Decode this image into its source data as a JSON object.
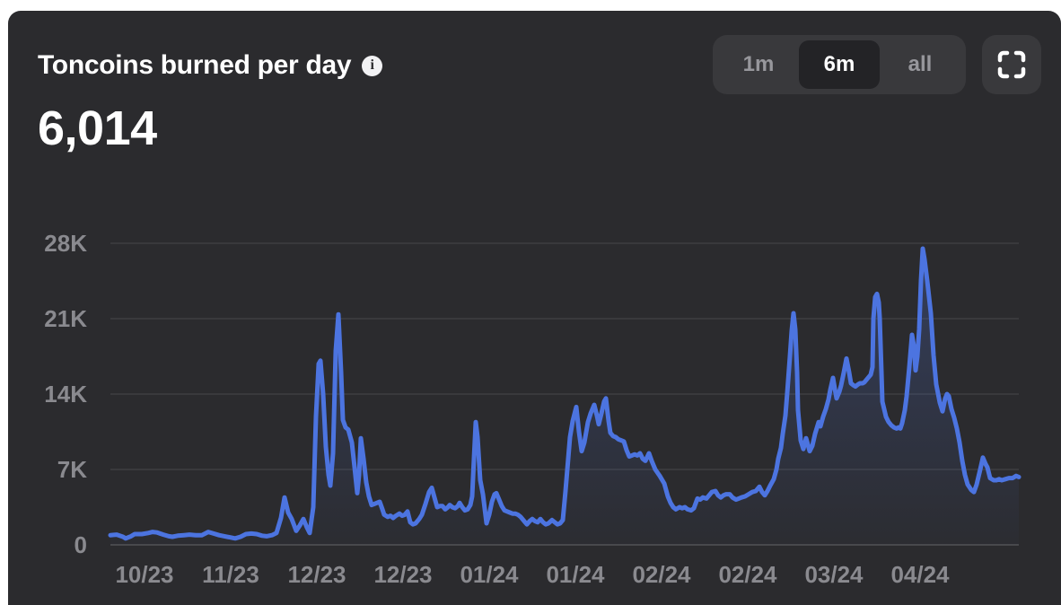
{
  "header": {
    "title": "Toncoins burned per day",
    "value": "6,014",
    "range_options": [
      {
        "label": "1m",
        "active": false
      },
      {
        "label": "6m",
        "active": true
      },
      {
        "label": "all",
        "active": false
      }
    ],
    "info_icon_glyph": "i"
  },
  "colors": {
    "panel_bg": "#2b2b2e",
    "page_bg": "#ffffff",
    "line": "#4c74e0",
    "area_top": "rgba(80,120,230,0.25)",
    "area_bottom": "rgba(80,120,230,0.02)",
    "gridline": "rgba(255,255,255,0.07)",
    "baseline": "rgba(255,255,255,0.14)",
    "axis_label": "#8a8a8f",
    "control_bg": "#39393c",
    "control_active_bg": "#232326"
  },
  "chart_data": {
    "type": "area",
    "title": "Toncoins burned per day",
    "unit": "toncoins burned per day",
    "current_value": 6014,
    "selected_range": "6m",
    "ylim": [
      0,
      28000
    ],
    "grid": "horizontal",
    "legend": "none",
    "yticks": [
      {
        "value": 0,
        "label": "0"
      },
      {
        "value": 7000,
        "label": "7K"
      },
      {
        "value": 14000,
        "label": "14K"
      },
      {
        "value": 21000,
        "label": "21K"
      },
      {
        "value": 28000,
        "label": "28K"
      }
    ],
    "xticks": [
      "10/23",
      "11/23",
      "12/23",
      "12/23",
      "01/24",
      "01/24",
      "02/24",
      "02/24",
      "03/24",
      "04/24"
    ],
    "points_format": "[x_position_px, toncoins_per_day]",
    "points": [
      [
        123,
        900
      ],
      [
        130,
        950
      ],
      [
        137,
        750
      ],
      [
        140,
        600
      ],
      [
        146,
        800
      ],
      [
        150,
        1000
      ],
      [
        158,
        1000
      ],
      [
        165,
        1100
      ],
      [
        170,
        1200
      ],
      [
        175,
        1150
      ],
      [
        182,
        950
      ],
      [
        188,
        800
      ],
      [
        192,
        750
      ],
      [
        198,
        850
      ],
      [
        205,
        900
      ],
      [
        211,
        950
      ],
      [
        218,
        900
      ],
      [
        225,
        900
      ],
      [
        232,
        1200
      ],
      [
        238,
        1050
      ],
      [
        244,
        900
      ],
      [
        250,
        800
      ],
      [
        256,
        700
      ],
      [
        262,
        600
      ],
      [
        268,
        750
      ],
      [
        274,
        1000
      ],
      [
        280,
        1050
      ],
      [
        286,
        1000
      ],
      [
        292,
        850
      ],
      [
        297,
        800
      ],
      [
        303,
        900
      ],
      [
        308,
        1100
      ],
      [
        313,
        2500
      ],
      [
        317,
        4400
      ],
      [
        321,
        3000
      ],
      [
        325,
        2400
      ],
      [
        330,
        1300
      ],
      [
        334,
        1800
      ],
      [
        338,
        2400
      ],
      [
        342,
        1600
      ],
      [
        345,
        1100
      ],
      [
        349,
        3500
      ],
      [
        352,
        11900
      ],
      [
        355,
        16800
      ],
      [
        357,
        17100
      ],
      [
        360,
        14000
      ],
      [
        363,
        9100
      ],
      [
        366,
        6500
      ],
      [
        368,
        5500
      ],
      [
        371,
        8500
      ],
      [
        374,
        18000
      ],
      [
        377,
        21400
      ],
      [
        380,
        16000
      ],
      [
        382,
        11600
      ],
      [
        385,
        10900
      ],
      [
        388,
        10700
      ],
      [
        392,
        9500
      ],
      [
        395,
        7200
      ],
      [
        398,
        4800
      ],
      [
        400,
        6500
      ],
      [
        402,
        9900
      ],
      [
        405,
        8000
      ],
      [
        408,
        5800
      ],
      [
        411,
        4500
      ],
      [
        414,
        3700
      ],
      [
        417,
        3800
      ],
      [
        420,
        3900
      ],
      [
        423,
        4000
      ],
      [
        426,
        3300
      ],
      [
        428,
        2800
      ],
      [
        432,
        2600
      ],
      [
        435,
        2700
      ],
      [
        438,
        2500
      ],
      [
        441,
        2700
      ],
      [
        445,
        2900
      ],
      [
        448,
        2700
      ],
      [
        451,
        2800
      ],
      [
        454,
        3100
      ],
      [
        457,
        2100
      ],
      [
        460,
        1900
      ],
      [
        463,
        2000
      ],
      [
        467,
        2400
      ],
      [
        470,
        2800
      ],
      [
        474,
        3800
      ],
      [
        478,
        4900
      ],
      [
        481,
        5300
      ],
      [
        484,
        4400
      ],
      [
        487,
        3500
      ],
      [
        490,
        3600
      ],
      [
        493,
        3600
      ],
      [
        496,
        3300
      ],
      [
        499,
        3500
      ],
      [
        501,
        3700
      ],
      [
        504,
        3500
      ],
      [
        507,
        3400
      ],
      [
        510,
        3600
      ],
      [
        512,
        3900
      ],
      [
        515,
        3500
      ],
      [
        518,
        3200
      ],
      [
        521,
        3300
      ],
      [
        524,
        3700
      ],
      [
        526,
        4500
      ],
      [
        528,
        8000
      ],
      [
        530,
        11400
      ],
      [
        532,
        10000
      ],
      [
        535,
        6000
      ],
      [
        538,
        4700
      ],
      [
        542,
        2000
      ],
      [
        545,
        2800
      ],
      [
        548,
        4000
      ],
      [
        551,
        4700
      ],
      [
        553,
        4800
      ],
      [
        556,
        4200
      ],
      [
        559,
        3600
      ],
      [
        562,
        3200
      ],
      [
        565,
        3100
      ],
      [
        568,
        3000
      ],
      [
        571,
        2900
      ],
      [
        574,
        2900
      ],
      [
        577,
        2800
      ],
      [
        580,
        2600
      ],
      [
        584,
        2200
      ],
      [
        587,
        1900
      ],
      [
        590,
        2200
      ],
      [
        593,
        2400
      ],
      [
        596,
        2200
      ],
      [
        599,
        2100
      ],
      [
        602,
        2400
      ],
      [
        605,
        2100
      ],
      [
        608,
        1900
      ],
      [
        611,
        2000
      ],
      [
        615,
        2300
      ],
      [
        618,
        2100
      ],
      [
        621,
        1900
      ],
      [
        624,
        2000
      ],
      [
        627,
        2300
      ],
      [
        630,
        5000
      ],
      [
        633,
        8000
      ],
      [
        635,
        10000
      ],
      [
        638,
        11500
      ],
      [
        642,
        12800
      ],
      [
        645,
        10500
      ],
      [
        648,
        8700
      ],
      [
        651,
        9500
      ],
      [
        655,
        11400
      ],
      [
        658,
        12200
      ],
      [
        662,
        13000
      ],
      [
        665,
        12000
      ],
      [
        667,
        11200
      ],
      [
        670,
        12200
      ],
      [
        673,
        13300
      ],
      [
        675,
        13600
      ],
      [
        678,
        11500
      ],
      [
        680,
        10400
      ],
      [
        683,
        10100
      ],
      [
        686,
        10000
      ],
      [
        689,
        9800
      ],
      [
        692,
        9700
      ],
      [
        695,
        9600
      ],
      [
        698,
        8800
      ],
      [
        701,
        8200
      ],
      [
        704,
        8300
      ],
      [
        707,
        8400
      ],
      [
        710,
        8300
      ],
      [
        713,
        8500
      ],
      [
        716,
        8000
      ],
      [
        719,
        7800
      ],
      [
        723,
        8500
      ],
      [
        726,
        7800
      ],
      [
        730,
        7000
      ],
      [
        735,
        6400
      ],
      [
        740,
        5700
      ],
      [
        744,
        4500
      ],
      [
        747,
        3900
      ],
      [
        750,
        3500
      ],
      [
        753,
        3300
      ],
      [
        757,
        3500
      ],
      [
        760,
        3400
      ],
      [
        763,
        3500
      ],
      [
        766,
        3300
      ],
      [
        770,
        3200
      ],
      [
        773,
        3400
      ],
      [
        777,
        4300
      ],
      [
        780,
        4200
      ],
      [
        783,
        4400
      ],
      [
        787,
        4300
      ],
      [
        790,
        4600
      ],
      [
        793,
        4900
      ],
      [
        797,
        5000
      ],
      [
        800,
        4600
      ],
      [
        803,
        4400
      ],
      [
        806,
        4600
      ],
      [
        809,
        4700
      ],
      [
        813,
        4700
      ],
      [
        816,
        4400
      ],
      [
        820,
        4200
      ],
      [
        823,
        4300
      ],
      [
        826,
        4400
      ],
      [
        830,
        4500
      ],
      [
        834,
        4700
      ],
      [
        838,
        4900
      ],
      [
        842,
        5000
      ],
      [
        846,
        5400
      ],
      [
        849,
        4900
      ],
      [
        852,
        4600
      ],
      [
        855,
        5000
      ],
      [
        858,
        5500
      ],
      [
        862,
        6100
      ],
      [
        865,
        7000
      ],
      [
        867,
        8000
      ],
      [
        870,
        9000
      ],
      [
        872,
        10300
      ],
      [
        875,
        12000
      ],
      [
        877,
        14100
      ],
      [
        880,
        17500
      ],
      [
        882,
        19900
      ],
      [
        884,
        21500
      ],
      [
        886,
        20000
      ],
      [
        888,
        16000
      ],
      [
        889,
        12500
      ],
      [
        892,
        9700
      ],
      [
        895,
        8900
      ],
      [
        898,
        9900
      ],
      [
        900,
        9300
      ],
      [
        902,
        8700
      ],
      [
        905,
        9200
      ],
      [
        908,
        10300
      ],
      [
        912,
        11400
      ],
      [
        914,
        11000
      ],
      [
        917,
        11900
      ],
      [
        920,
        12600
      ],
      [
        923,
        13500
      ],
      [
        925,
        14400
      ],
      [
        928,
        15500
      ],
      [
        930,
        14500
      ],
      [
        932,
        13600
      ],
      [
        935,
        14200
      ],
      [
        937,
        14800
      ],
      [
        940,
        16000
      ],
      [
        943,
        17300
      ],
      [
        946,
        16000
      ],
      [
        948,
        15000
      ],
      [
        951,
        14800
      ],
      [
        953,
        14700
      ],
      [
        956,
        14900
      ],
      [
        958,
        15000
      ],
      [
        961,
        15000
      ],
      [
        963,
        15100
      ],
      [
        966,
        15400
      ],
      [
        968,
        15600
      ],
      [
        970,
        15800
      ],
      [
        972,
        16500
      ],
      [
        973,
        21000
      ],
      [
        975,
        23000
      ],
      [
        977,
        23300
      ],
      [
        979,
        22500
      ],
      [
        980,
        21100
      ],
      [
        982,
        16000
      ],
      [
        983,
        13300
      ],
      [
        987,
        11900
      ],
      [
        990,
        11400
      ],
      [
        993,
        11100
      ],
      [
        996,
        10900
      ],
      [
        999,
        10800
      ],
      [
        1001,
        10900
      ],
      [
        1003,
        10800
      ],
      [
        1005,
        11300
      ],
      [
        1008,
        12500
      ],
      [
        1010,
        13800
      ],
      [
        1013,
        16500
      ],
      [
        1016,
        19500
      ],
      [
        1018,
        18500
      ],
      [
        1020,
        16200
      ],
      [
        1022,
        17500
      ],
      [
        1024,
        20000
      ],
      [
        1026,
        24500
      ],
      [
        1028,
        27500
      ],
      [
        1030,
        26500
      ],
      [
        1033,
        24500
      ],
      [
        1037,
        21500
      ],
      [
        1040,
        17600
      ],
      [
        1043,
        14900
      ],
      [
        1047,
        13200
      ],
      [
        1050,
        12400
      ],
      [
        1053,
        13600
      ],
      [
        1055,
        14000
      ],
      [
        1057,
        13800
      ],
      [
        1060,
        12600
      ],
      [
        1063,
        11800
      ],
      [
        1066,
        10800
      ],
      [
        1069,
        9500
      ],
      [
        1072,
        7800
      ],
      [
        1075,
        6500
      ],
      [
        1078,
        5600
      ],
      [
        1082,
        5100
      ],
      [
        1085,
        4900
      ],
      [
        1088,
        5600
      ],
      [
        1092,
        7000
      ],
      [
        1095,
        8100
      ],
      [
        1098,
        7500
      ],
      [
        1100,
        7200
      ],
      [
        1103,
        6200
      ],
      [
        1107,
        6000
      ],
      [
        1110,
        6000
      ],
      [
        1113,
        6100
      ],
      [
        1116,
        6000
      ],
      [
        1120,
        6100
      ],
      [
        1124,
        6200
      ],
      [
        1128,
        6200
      ],
      [
        1132,
        6400
      ],
      [
        1135,
        6300
      ]
    ]
  }
}
